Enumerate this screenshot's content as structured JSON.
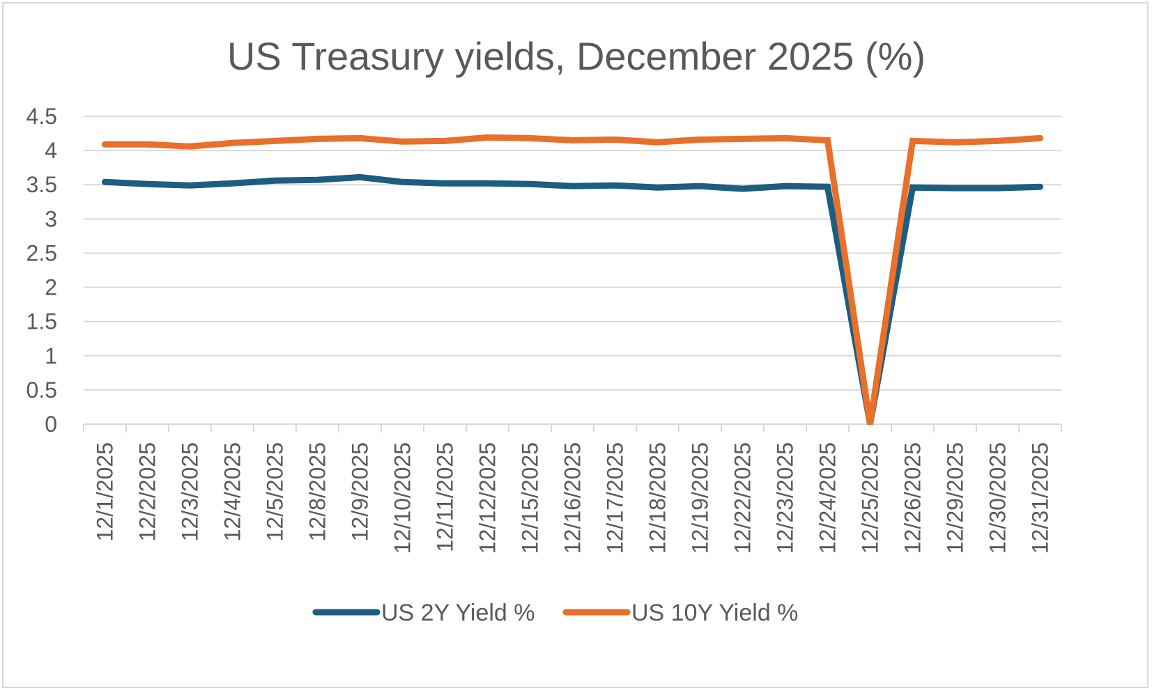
{
  "chart_data": {
    "type": "line",
    "title": "US Treasury yields, December 2025 (%)",
    "xlabel": "",
    "ylabel": "",
    "ylim": [
      0,
      4.5
    ],
    "yticks": [
      "0",
      "0.5",
      "1",
      "1.5",
      "2",
      "2.5",
      "3",
      "3.5",
      "4",
      "4.5"
    ],
    "grid": true,
    "legend_position": "bottom",
    "categories": [
      "12/1/2025",
      "12/2/2025",
      "12/3/2025",
      "12/4/2025",
      "12/5/2025",
      "12/8/2025",
      "12/9/2025",
      "12/10/2025",
      "12/11/2025",
      "12/12/2025",
      "12/15/2025",
      "12/16/2025",
      "12/17/2025",
      "12/18/2025",
      "12/19/2025",
      "12/22/2025",
      "12/23/2025",
      "12/24/2025",
      "12/25/2025",
      "12/26/2025",
      "12/29/2025",
      "12/30/2025",
      "12/31/2025"
    ],
    "series": [
      {
        "name": "US 2Y Yield %",
        "color": "#1b5e80",
        "values": [
          3.54,
          3.51,
          3.49,
          3.52,
          3.56,
          3.57,
          3.61,
          3.54,
          3.52,
          3.52,
          3.51,
          3.48,
          3.49,
          3.46,
          3.48,
          3.44,
          3.48,
          3.47,
          0,
          3.46,
          3.45,
          3.45,
          3.47
        ]
      },
      {
        "name": "US 10Y Yield %",
        "color": "#e8702a",
        "values": [
          4.09,
          4.09,
          4.06,
          4.11,
          4.14,
          4.17,
          4.18,
          4.13,
          4.14,
          4.19,
          4.18,
          4.15,
          4.16,
          4.12,
          4.16,
          4.17,
          4.18,
          4.15,
          0,
          4.14,
          4.12,
          4.14,
          4.18
        ]
      }
    ]
  }
}
